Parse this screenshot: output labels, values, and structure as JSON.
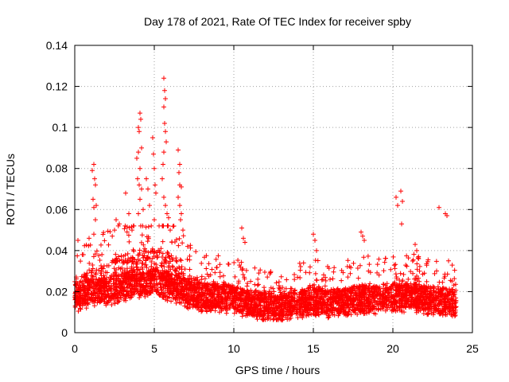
{
  "chart_data": {
    "type": "scatter",
    "title": "Day 178 of 2021, Rate Of TEC Index for receiver spby",
    "xlabel": "GPS time / hours",
    "ylabel": "ROTI / TECUs",
    "xlim": [
      0,
      25
    ],
    "ylim": [
      0,
      0.14
    ],
    "x_ticks": [
      0,
      5,
      10,
      15,
      20,
      25
    ],
    "x_tick_labels": [
      "0",
      "5",
      "10",
      "15",
      "20",
      "25"
    ],
    "y_ticks": [
      0,
      0.02,
      0.04,
      0.06,
      0.08,
      0.1,
      0.12,
      0.14
    ],
    "y_tick_labels": [
      "0",
      "0.02",
      "0.04",
      "0.06",
      "0.08",
      "0.1",
      "0.12",
      "0.14"
    ],
    "grid": true,
    "marker": "+",
    "marker_color": "#ff0000",
    "series": [
      {
        "name": "ROTI",
        "x_range": [
          0,
          24
        ],
        "baseline": [
          [
            0,
            0.018
          ],
          [
            0.5,
            0.019
          ],
          [
            1,
            0.021
          ],
          [
            1.5,
            0.02
          ],
          [
            2,
            0.02
          ],
          [
            2.5,
            0.022
          ],
          [
            3,
            0.023
          ],
          [
            3.5,
            0.024
          ],
          [
            4,
            0.025
          ],
          [
            4.5,
            0.024
          ],
          [
            5,
            0.025
          ],
          [
            5.5,
            0.024
          ],
          [
            6,
            0.023
          ],
          [
            6.5,
            0.022
          ],
          [
            7,
            0.02
          ],
          [
            7.5,
            0.019
          ],
          [
            8,
            0.018
          ],
          [
            9,
            0.018
          ],
          [
            10,
            0.017
          ],
          [
            11,
            0.015
          ],
          [
            12,
            0.014
          ],
          [
            13,
            0.014
          ],
          [
            14,
            0.015
          ],
          [
            15,
            0.016
          ],
          [
            16,
            0.015
          ],
          [
            17,
            0.016
          ],
          [
            18,
            0.017
          ],
          [
            19,
            0.017
          ],
          [
            20,
            0.018
          ],
          [
            21,
            0.018
          ],
          [
            22,
            0.017
          ],
          [
            23,
            0.016
          ],
          [
            24,
            0.015
          ]
        ],
        "spread": [
          [
            0,
            0.02
          ],
          [
            2,
            0.026
          ],
          [
            3,
            0.03
          ],
          [
            4,
            0.032
          ],
          [
            5,
            0.03
          ],
          [
            6,
            0.03
          ],
          [
            7,
            0.022
          ],
          [
            8,
            0.018
          ],
          [
            10,
            0.017
          ],
          [
            12,
            0.014
          ],
          [
            14,
            0.016
          ],
          [
            15,
            0.02
          ],
          [
            16,
            0.016
          ],
          [
            18,
            0.018
          ],
          [
            20,
            0.018
          ],
          [
            22,
            0.018
          ],
          [
            24,
            0.016
          ]
        ],
        "outliers": [
          [
            0.2,
            0.045
          ],
          [
            0.9,
            0.046
          ],
          [
            1.1,
            0.079
          ],
          [
            1.2,
            0.082
          ],
          [
            1.25,
            0.075
          ],
          [
            1.3,
            0.072
          ],
          [
            1.15,
            0.065
          ],
          [
            1.2,
            0.061
          ],
          [
            1.35,
            0.062
          ],
          [
            1.3,
            0.055
          ],
          [
            1.2,
            0.048
          ],
          [
            2.5,
            0.05
          ],
          [
            2.6,
            0.055
          ],
          [
            2.8,
            0.053
          ],
          [
            3.2,
            0.068
          ],
          [
            3.4,
            0.058
          ],
          [
            3.6,
            0.05
          ],
          [
            3.9,
            0.085
          ],
          [
            4.0,
            0.1
          ],
          [
            4.1,
            0.107
          ],
          [
            4.15,
            0.104
          ],
          [
            4.05,
            0.098
          ],
          [
            4.2,
            0.09
          ],
          [
            4.0,
            0.088
          ],
          [
            4.1,
            0.08
          ],
          [
            3.95,
            0.075
          ],
          [
            4.05,
            0.072
          ],
          [
            4.2,
            0.07
          ],
          [
            4.1,
            0.065
          ],
          [
            4.3,
            0.06
          ],
          [
            4.0,
            0.058
          ],
          [
            4.5,
            0.075
          ],
          [
            4.6,
            0.07
          ],
          [
            4.7,
            0.062
          ],
          [
            4.9,
            0.095
          ],
          [
            4.95,
            0.087
          ],
          [
            5.0,
            0.08
          ],
          [
            5.05,
            0.072
          ],
          [
            5.1,
            0.068
          ],
          [
            5.0,
            0.055
          ],
          [
            5.6,
            0.124
          ],
          [
            5.65,
            0.118
          ],
          [
            5.7,
            0.114
          ],
          [
            5.6,
            0.11
          ],
          [
            5.65,
            0.102
          ],
          [
            5.7,
            0.098
          ],
          [
            5.75,
            0.093
          ],
          [
            5.6,
            0.088
          ],
          [
            5.55,
            0.082
          ],
          [
            5.5,
            0.075
          ],
          [
            5.6,
            0.066
          ],
          [
            5.7,
            0.062
          ],
          [
            5.8,
            0.058
          ],
          [
            5.9,
            0.056
          ],
          [
            6.0,
            0.05
          ],
          [
            6.5,
            0.089
          ],
          [
            6.6,
            0.082
          ],
          [
            6.55,
            0.078
          ],
          [
            6.6,
            0.072
          ],
          [
            6.7,
            0.071
          ],
          [
            6.5,
            0.066
          ],
          [
            6.6,
            0.062
          ],
          [
            6.7,
            0.058
          ],
          [
            6.65,
            0.055
          ],
          [
            6.8,
            0.05
          ],
          [
            10.5,
            0.051
          ],
          [
            10.6,
            0.046
          ],
          [
            10.7,
            0.044
          ],
          [
            15.0,
            0.048
          ],
          [
            15.1,
            0.045
          ],
          [
            15.2,
            0.04
          ],
          [
            18.0,
            0.049
          ],
          [
            18.1,
            0.047
          ],
          [
            18.2,
            0.045
          ],
          [
            20.2,
            0.066
          ],
          [
            20.3,
            0.062
          ],
          [
            20.5,
            0.069
          ],
          [
            20.6,
            0.064
          ],
          [
            20.55,
            0.053
          ],
          [
            21.4,
            0.043
          ],
          [
            21.5,
            0.04
          ],
          [
            22.9,
            0.061
          ],
          [
            23.3,
            0.058
          ],
          [
            23.4,
            0.057
          ],
          [
            23.5,
            0.035
          ]
        ]
      }
    ]
  }
}
